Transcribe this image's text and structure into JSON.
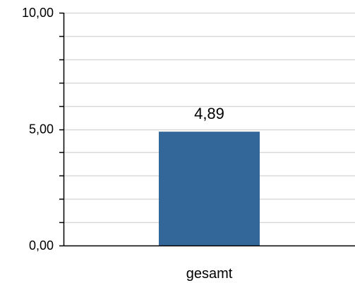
{
  "chart_data": {
    "type": "bar",
    "categories": [
      "gesamt"
    ],
    "values": [
      4.89
    ],
    "value_labels": [
      "4,89"
    ],
    "ylim": [
      0,
      10
    ],
    "y_major_ticks": [
      0,
      5,
      10
    ],
    "y_tick_labels": [
      "0,00",
      "5,00",
      "10,00"
    ],
    "y_minor_step": 1,
    "grid": true,
    "legend": "none",
    "title": "",
    "xlabel": "",
    "ylabel": "",
    "colors": {
      "bar": "#336699",
      "grid": "#d9d9d9",
      "axis": "#000000"
    }
  }
}
